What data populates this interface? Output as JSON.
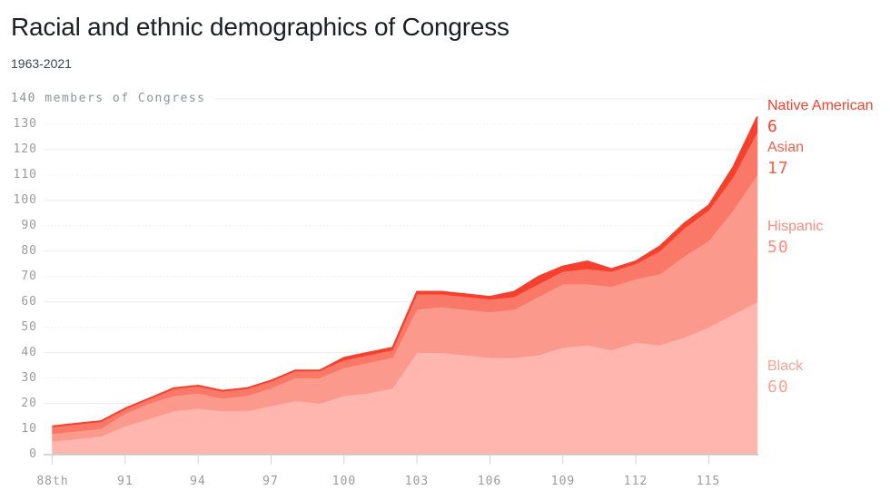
{
  "header": {
    "title": "Racial and ethnic demographics of Congress",
    "subtitle": "1963-2021"
  },
  "colors": {
    "grid": "#ececec",
    "axis_line": "#c7c7c7",
    "tick_mark": "#d2d2d2",
    "tick_text": "#9b9b9b",
    "title_text": "#1d1f23",
    "subtitle_text": "#3f444a",
    "unit_text": "#8f9296",
    "top_edge_stroke": "#f6402e"
  },
  "chart_data": {
    "type": "area",
    "stacked": true,
    "title": "Racial and ethnic demographics of Congress",
    "subtitle": "1963-2021",
    "unit_label": "140 members of Congress",
    "ylabel": "members of Congress",
    "ylim": [
      0,
      140
    ],
    "y_ticks": [
      0,
      10,
      20,
      30,
      40,
      50,
      60,
      70,
      80,
      90,
      100,
      110,
      120,
      130,
      140
    ],
    "x": [
      88,
      89,
      90,
      91,
      92,
      93,
      94,
      95,
      96,
      97,
      98,
      99,
      100,
      101,
      102,
      103,
      104,
      105,
      106,
      107,
      108,
      109,
      110,
      111,
      112,
      113,
      114,
      115,
      116,
      117
    ],
    "x_ticks": [
      {
        "label": "88th",
        "congress": 88
      },
      {
        "label": "91",
        "congress": 91
      },
      {
        "label": "94",
        "congress": 94
      },
      {
        "label": "97",
        "congress": 97
      },
      {
        "label": "100",
        "congress": 100
      },
      {
        "label": "103",
        "congress": 103
      },
      {
        "label": "106",
        "congress": 106
      },
      {
        "label": "109",
        "congress": 109
      },
      {
        "label": "112",
        "congress": 112
      },
      {
        "label": "115",
        "congress": 115
      }
    ],
    "legend_position": "right",
    "grid": true,
    "series": [
      {
        "name": "Black",
        "fill": "#ffb6ae",
        "text_color": "#fba396",
        "end_value": 60,
        "values": [
          5,
          6,
          7,
          11,
          14,
          17,
          18,
          17,
          17,
          19,
          21,
          20,
          23,
          24,
          26,
          40,
          40,
          39,
          38,
          38,
          39,
          42,
          43,
          41,
          44,
          43,
          46,
          50,
          55,
          60
        ]
      },
      {
        "name": "Hispanic",
        "fill": "#fb998c",
        "text_color": "#fb8d7f",
        "end_value": 50,
        "values": [
          3,
          3,
          3,
          5,
          6,
          6,
          6,
          5,
          6,
          7,
          9,
          10,
          11,
          12,
          12,
          17,
          18,
          18,
          18,
          19,
          23,
          25,
          24,
          25,
          25,
          28,
          32,
          34,
          41,
          50
        ]
      },
      {
        "name": "Asian",
        "fill": "#fa7867",
        "text_color": "#f75e49",
        "end_value": 17,
        "values": [
          3,
          3,
          3,
          2,
          2,
          3,
          3,
          3,
          3,
          3,
          3,
          3,
          3,
          3,
          3,
          6,
          5,
          5,
          5,
          5,
          5,
          5,
          6,
          6,
          6,
          9,
          11,
          12,
          13,
          17
        ]
      },
      {
        "name": "Native American",
        "fill": "#f6402e",
        "text_color": "#f6402e",
        "end_value": 6,
        "values": [
          0,
          0,
          0,
          0,
          0,
          0,
          0,
          0,
          0,
          0,
          0,
          0,
          1,
          1,
          1,
          1,
          1,
          1,
          1,
          2,
          3,
          2,
          3,
          1,
          1,
          2,
          2,
          2,
          4,
          6
        ]
      }
    ],
    "legend": [
      {
        "label": "Native American",
        "value": "6"
      },
      {
        "label": "Asian",
        "value": "17"
      },
      {
        "label": "Hispanic",
        "value": "50"
      },
      {
        "label": "Black",
        "value": "60"
      }
    ]
  }
}
